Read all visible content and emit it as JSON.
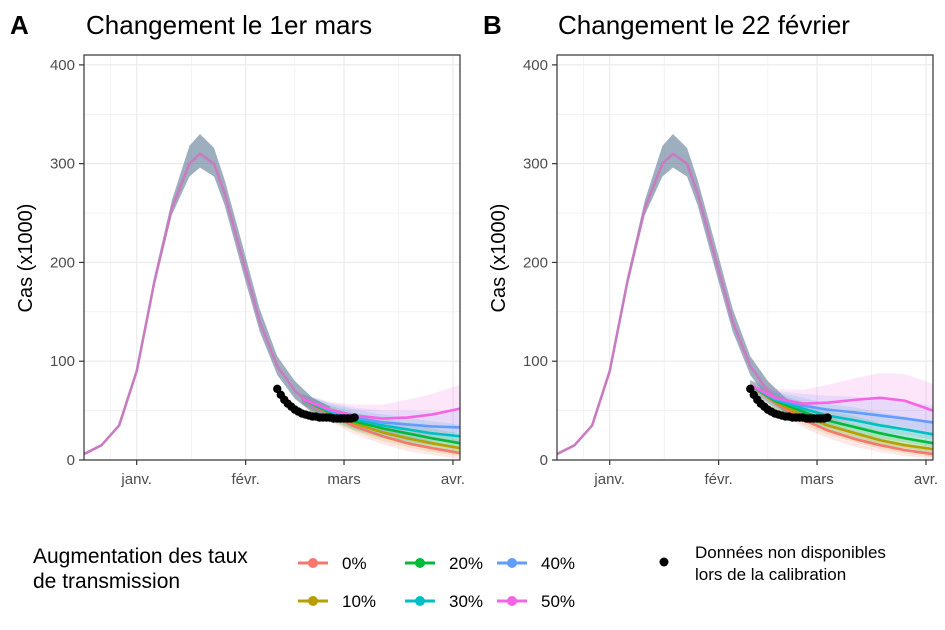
{
  "chart_data": [
    {
      "panel": "A",
      "type": "line",
      "title": "Changement le 1er mars",
      "ylabel": "Cas (x1000)",
      "xlabel": "",
      "ylim": [
        0,
        410
      ],
      "y_ticks": [
        0,
        100,
        200,
        300,
        400
      ],
      "x_range_days": [
        -15,
        92
      ],
      "x_ticks": [
        {
          "day": 0,
          "label": "janv."
        },
        {
          "day": 31,
          "label": "févr."
        },
        {
          "day": 59,
          "label": "mars"
        },
        {
          "day": 90,
          "label": "avr."
        }
      ],
      "grid": true,
      "change_day": 47,
      "common_curve": {
        "days": [
          -15,
          -10,
          -5,
          0,
          5,
          10,
          15,
          18,
          22,
          25,
          30,
          35,
          40,
          45,
          50,
          55
        ],
        "values": [
          6,
          15,
          35,
          90,
          180,
          255,
          300,
          310,
          300,
          270,
          205,
          140,
          95,
          70,
          55,
          45
        ],
        "band": [
          [
            6,
            6
          ],
          [
            15,
            15
          ],
          [
            35,
            35
          ],
          [
            90,
            90
          ],
          [
            176,
            186
          ],
          [
            248,
            263
          ],
          [
            287,
            318
          ],
          [
            296,
            330
          ],
          [
            287,
            316
          ],
          [
            258,
            284
          ],
          [
            193,
            219
          ],
          [
            130,
            153
          ],
          [
            86,
            105
          ],
          [
            62,
            80
          ],
          [
            48,
            63
          ],
          [
            38,
            54
          ]
        ]
      },
      "projection_days": [
        47,
        55,
        62,
        70,
        77,
        84,
        92
      ],
      "series": [
        {
          "name": "0%",
          "color": "#F8766D",
          "values": [
            62,
            46,
            34,
            24,
            17,
            12,
            7
          ],
          "half_width": [
            5,
            7,
            8,
            8,
            8,
            7,
            6
          ]
        },
        {
          "name": "10%",
          "color": "#B79F00",
          "values": [
            62,
            47,
            37,
            28,
            22,
            17,
            12
          ],
          "half_width": [
            5,
            7,
            8,
            9,
            9,
            9,
            8
          ]
        },
        {
          "name": "20%",
          "color": "#00BA38",
          "values": [
            62,
            48,
            39,
            32,
            27,
            22,
            17
          ],
          "half_width": [
            5,
            7,
            9,
            10,
            10,
            10,
            10
          ]
        },
        {
          "name": "30%",
          "color": "#00BFC4",
          "values": [
            62,
            49,
            41,
            35,
            31,
            27,
            24
          ],
          "half_width": [
            5,
            8,
            10,
            11,
            12,
            12,
            12
          ]
        },
        {
          "name": "40%",
          "color": "#619CFF",
          "values": [
            62,
            50,
            43,
            38,
            36,
            34,
            33
          ],
          "half_width": [
            5,
            8,
            10,
            12,
            14,
            15,
            16
          ]
        },
        {
          "name": "50%",
          "color": "#F564E3",
          "values": [
            62,
            51,
            45,
            42,
            43,
            46,
            52
          ],
          "half_width": [
            5,
            8,
            11,
            14,
            18,
            21,
            24
          ]
        }
      ],
      "points": {
        "name": "Données non disponibles lors de la calibration",
        "days": [
          40,
          41,
          42,
          43,
          44,
          45,
          46,
          47,
          48,
          49,
          50,
          51,
          52,
          53,
          54,
          55,
          56,
          57,
          58,
          59,
          60,
          61,
          62
        ],
        "values": [
          72,
          66,
          61,
          57,
          54,
          51,
          49,
          47,
          46,
          45,
          44,
          44,
          43,
          43,
          43,
          43,
          42,
          42,
          42,
          42,
          42,
          42,
          43
        ]
      }
    },
    {
      "panel": "B",
      "type": "line",
      "title": "Changement le 22 février",
      "ylabel": "Cas (x1000)",
      "xlabel": "",
      "ylim": [
        0,
        410
      ],
      "y_ticks": [
        0,
        100,
        200,
        300,
        400
      ],
      "x_range_days": [
        -15,
        92
      ],
      "x_ticks": [
        {
          "day": 0,
          "label": "janv."
        },
        {
          "day": 31,
          "label": "févr."
        },
        {
          "day": 59,
          "label": "mars"
        },
        {
          "day": 90,
          "label": "avr."
        }
      ],
      "grid": true,
      "change_day": 40,
      "common_curve": {
        "days": [
          -15,
          -10,
          -5,
          0,
          5,
          10,
          15,
          18,
          22,
          25,
          30,
          35,
          40,
          45,
          50,
          55
        ],
        "values": [
          6,
          15,
          35,
          90,
          180,
          255,
          300,
          310,
          300,
          270,
          205,
          140,
          95,
          70,
          55,
          45
        ],
        "band": [
          [
            6,
            6
          ],
          [
            15,
            15
          ],
          [
            35,
            35
          ],
          [
            90,
            90
          ],
          [
            176,
            186
          ],
          [
            248,
            263
          ],
          [
            287,
            318
          ],
          [
            296,
            330
          ],
          [
            287,
            316
          ],
          [
            258,
            284
          ],
          [
            193,
            219
          ],
          [
            130,
            153
          ],
          [
            86,
            105
          ],
          [
            62,
            80
          ],
          [
            48,
            63
          ],
          [
            38,
            54
          ]
        ]
      },
      "projection_days": [
        40,
        47,
        55,
        62,
        70,
        77,
        84,
        92
      ],
      "series": [
        {
          "name": "0%",
          "color": "#F8766D",
          "values": [
            76,
            58,
            41,
            30,
            21,
            15,
            10,
            6
          ],
          "half_width": [
            5,
            7,
            8,
            8,
            8,
            7,
            6,
            5
          ]
        },
        {
          "name": "10%",
          "color": "#B79F00",
          "values": [
            76,
            59,
            45,
            35,
            27,
            20,
            15,
            11
          ],
          "half_width": [
            5,
            7,
            9,
            9,
            9,
            9,
            8,
            8
          ]
        },
        {
          "name": "20%",
          "color": "#00BA38",
          "values": [
            76,
            60,
            49,
            40,
            33,
            27,
            22,
            17
          ],
          "half_width": [
            5,
            8,
            10,
            10,
            11,
            11,
            10,
            10
          ]
        },
        {
          "name": "30%",
          "color": "#00BFC4",
          "values": [
            76,
            61,
            52,
            45,
            40,
            35,
            31,
            26
          ],
          "half_width": [
            5,
            8,
            11,
            12,
            13,
            13,
            13,
            13
          ]
        },
        {
          "name": "40%",
          "color": "#619CFF",
          "values": [
            76,
            62,
            55,
            51,
            48,
            45,
            42,
            38
          ],
          "half_width": [
            5,
            8,
            12,
            14,
            16,
            17,
            17,
            17
          ]
        },
        {
          "name": "50%",
          "color": "#F564E3",
          "values": [
            76,
            63,
            57,
            58,
            61,
            63,
            60,
            50
          ],
          "half_width": [
            5,
            9,
            14,
            18,
            22,
            25,
            27,
            27
          ]
        }
      ],
      "points": {
        "name": "Données non disponibles lors de la calibration",
        "days": [
          40,
          41,
          42,
          43,
          44,
          45,
          46,
          47,
          48,
          49,
          50,
          51,
          52,
          53,
          54,
          55,
          56,
          57,
          58,
          59,
          60,
          61,
          62
        ],
        "values": [
          72,
          66,
          61,
          57,
          54,
          51,
          49,
          47,
          46,
          45,
          44,
          44,
          43,
          43,
          43,
          43,
          42,
          42,
          42,
          42,
          42,
          42,
          43
        ]
      }
    }
  ],
  "legend": {
    "title_line1": "Augmentation des taux",
    "title_line2": "de transmission",
    "points_line1": "Données non disponibles",
    "points_line2": "lors de la calibration"
  },
  "colors": {
    "common_band": "#5b7a93",
    "common_line": "#c77cc0",
    "grid": "#ebebeb",
    "points": "#000000"
  }
}
